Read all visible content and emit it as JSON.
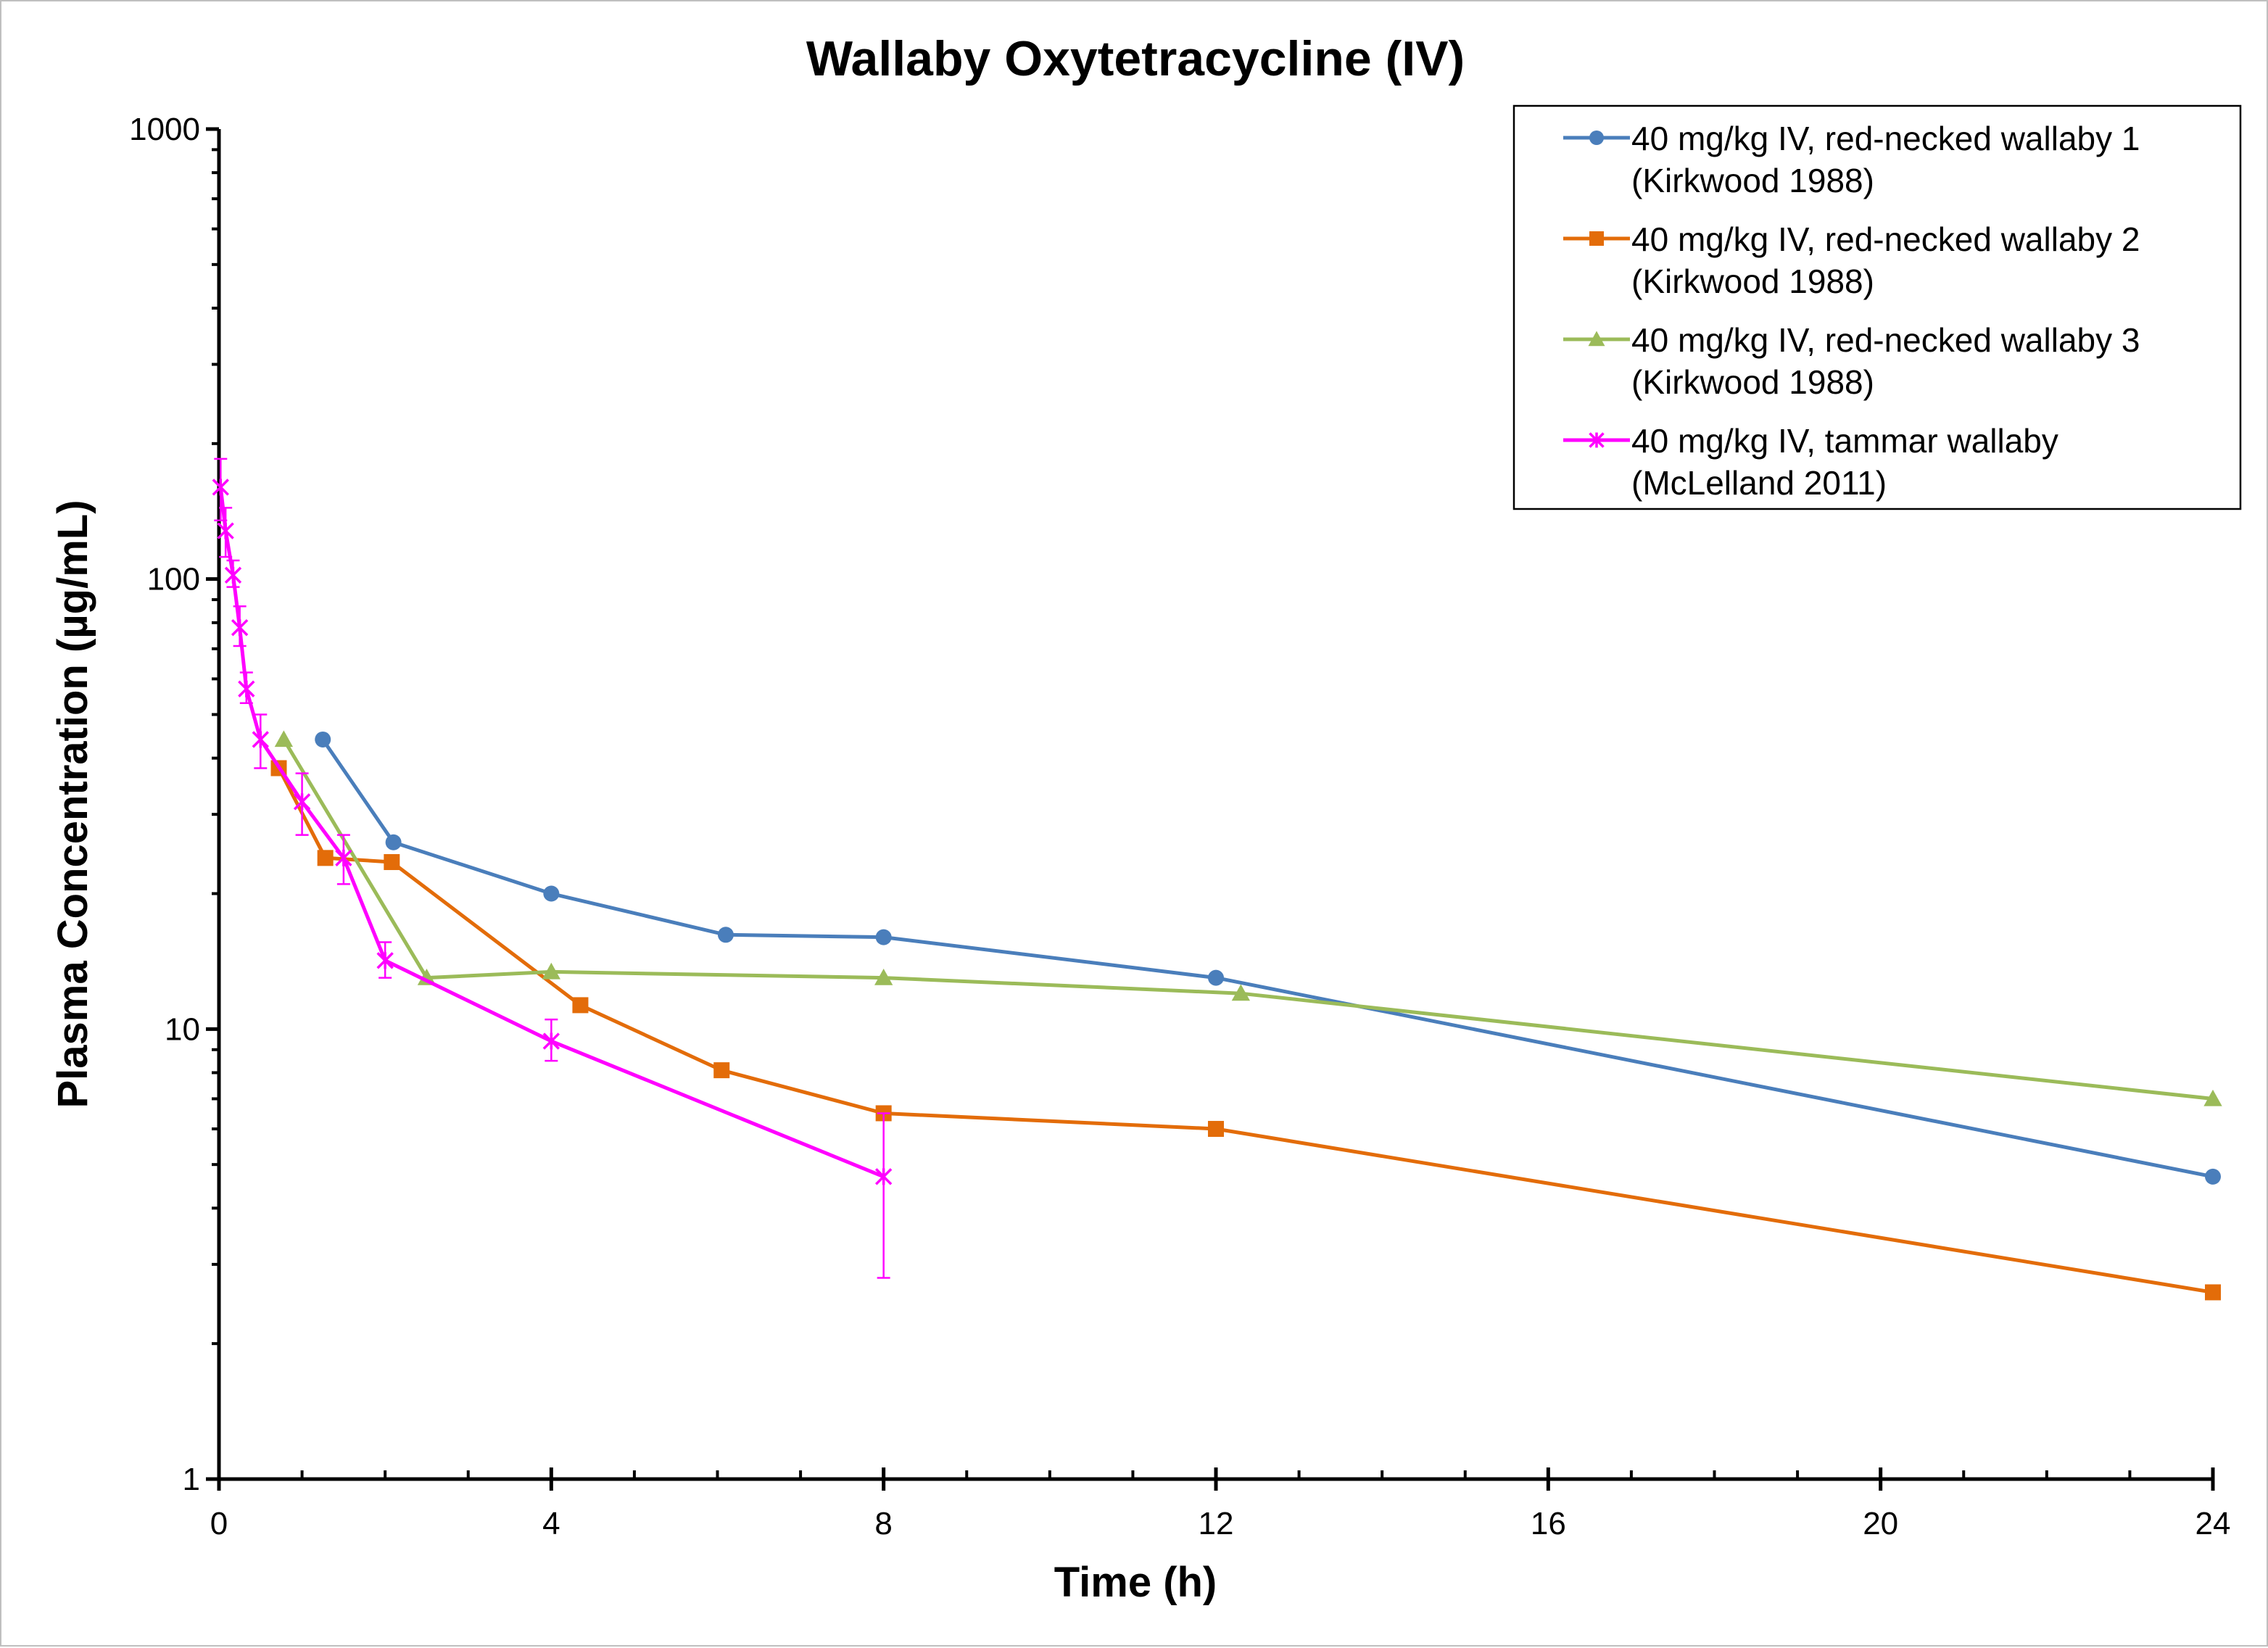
{
  "chart_data": {
    "type": "line",
    "title": "Wallaby Oxytetracycline (IV)",
    "xlabel": "Time (h)",
    "ylabel": "Plasma Concentration (µg/mL)",
    "xlim": [
      0,
      24
    ],
    "ylim": [
      1,
      1000
    ],
    "y_scale": "log",
    "x_ticks": [
      0,
      4,
      8,
      12,
      16,
      20,
      24
    ],
    "x_tick_labels": [
      "0",
      "4",
      "8",
      "12",
      "16",
      "20",
      "24"
    ],
    "y_ticks": [
      1,
      10,
      100,
      1000
    ],
    "y_tick_labels": [
      "1",
      "10",
      "100",
      "1000"
    ],
    "grid": false,
    "legend_position": "top-right",
    "series": [
      {
        "name": "40 mg/kg IV, red-necked wallaby 1 (Kirkwood 1988)",
        "legend_lines": [
          "40 mg/kg IV, red-necked wallaby 1",
          "(Kirkwood 1988)"
        ],
        "color": "#4a7ebb",
        "marker": "circle",
        "x": [
          1.25,
          2.1,
          4.0,
          6.1,
          8.0,
          12.0,
          24.0
        ],
        "y": [
          44,
          26,
          20,
          16.2,
          16,
          13,
          4.7
        ]
      },
      {
        "name": "40 mg/kg IV, red-necked wallaby 2 (Kirkwood 1988)",
        "legend_lines": [
          "40 mg/kg IV, red-necked wallaby 2",
          "(Kirkwood 1988)"
        ],
        "color": "#e36c09",
        "marker": "square",
        "x": [
          0.72,
          1.28,
          2.08,
          4.35,
          6.05,
          8.0,
          12.0,
          24.0
        ],
        "y": [
          38,
          24,
          23.5,
          11.3,
          8.1,
          6.5,
          6.0,
          2.6
        ]
      },
      {
        "name": "40 mg/kg IV, red-necked wallaby 3 (Kirkwood 1988)",
        "legend_lines": [
          "40 mg/kg IV, red-necked wallaby 3",
          "(Kirkwood 1988)"
        ],
        "color": "#9bbb59",
        "marker": "triangle",
        "x": [
          0.78,
          2.5,
          4.0,
          8.0,
          12.3,
          24.0
        ],
        "y": [
          44,
          13,
          13.4,
          13,
          12,
          7
        ]
      },
      {
        "name": "40 mg/kg IV, tammar wallaby (McLelland 2011)",
        "legend_lines": [
          "40 mg/kg IV, tammar wallaby",
          "(McLelland 2011)"
        ],
        "color": "#ff00ff",
        "marker": "x",
        "x": [
          0.02,
          0.08,
          0.17,
          0.25,
          0.33,
          0.5,
          1.0,
          1.5,
          2.0,
          4.0,
          8.0
        ],
        "y": [
          160,
          128,
          102,
          78,
          57,
          44,
          32,
          24,
          14.2,
          9.4,
          4.7
        ],
        "y_error_low": [
          135,
          112,
          96,
          71,
          53,
          38,
          27,
          21,
          13.0,
          8.5,
          2.8
        ],
        "y_error_high": [
          185,
          144,
          110,
          87,
          62,
          50,
          37,
          27,
          15.6,
          10.5,
          6.5
        ]
      }
    ]
  }
}
